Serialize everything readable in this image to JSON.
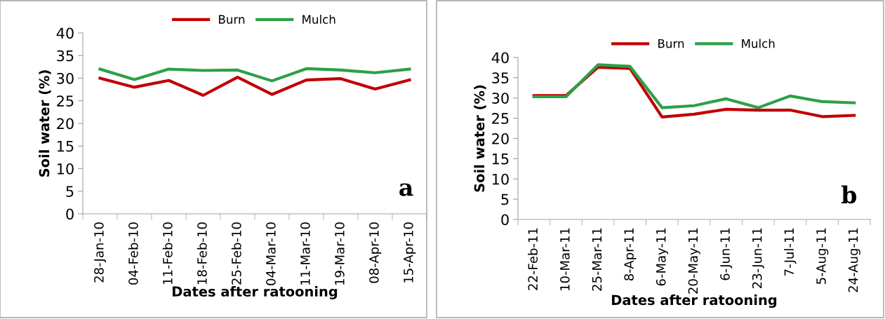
{
  "chart_data": [
    {
      "type": "line",
      "xlabel": "Dates after ratooning",
      "ylabel": "Soil water (%)",
      "categories": [
        "28-Jan-10",
        "04-Feb-10",
        "11-Feb-10",
        "18-Feb-10",
        "25-Feb-10",
        "04-Mar-10",
        "11-Mar-10",
        "19-Mar-10",
        "08-Apr-10",
        "15-Apr-10"
      ],
      "series": [
        {
          "name": "Burn",
          "color": "#c00000",
          "values": [
            30,
            28,
            29.5,
            26.2,
            30.2,
            26.4,
            29.6,
            29.9,
            27.6,
            29.6
          ]
        },
        {
          "name": "Mulch",
          "color": "#2ca048",
          "values": [
            32,
            29.7,
            32,
            31.7,
            31.8,
            29.4,
            32.1,
            31.8,
            31.2,
            32
          ]
        }
      ],
      "ylim": [
        0,
        40
      ],
      "yticks": [
        0,
        5,
        10,
        15,
        20,
        25,
        30,
        35,
        40
      ],
      "grid": false,
      "legend": "top",
      "marker": "none",
      "line_style": "solid",
      "annotations": [
        "a"
      ]
    },
    {
      "type": "line",
      "xlabel": "Dates after ratooning",
      "ylabel": "Soil water (%)",
      "categories": [
        "22-Feb-11",
        "10-Mar-11",
        "25-Mar-11",
        "8-Apr-11",
        "6-May-11",
        "20-May-11",
        "6-Jun-11",
        "23-Jun-11",
        "7-Jul-11",
        "5-Aug-11",
        "24-Aug-11"
      ],
      "series": [
        {
          "name": "Burn",
          "color": "#c00000",
          "values": [
            30.6,
            30.6,
            37.6,
            37.3,
            25.3,
            26,
            27.2,
            27,
            27,
            25.4,
            25.7
          ]
        },
        {
          "name": "Mulch",
          "color": "#2ca048",
          "values": [
            30.3,
            30.3,
            38.2,
            37.8,
            27.6,
            28.1,
            29.8,
            27.6,
            30.5,
            29.1,
            28.8
          ]
        }
      ],
      "ylim": [
        0,
        40
      ],
      "yticks": [
        0,
        5,
        10,
        15,
        20,
        25,
        30,
        35,
        40
      ],
      "grid": false,
      "legend": "top",
      "marker": "none",
      "line_style": "solid",
      "annotations": [
        "b"
      ]
    }
  ]
}
